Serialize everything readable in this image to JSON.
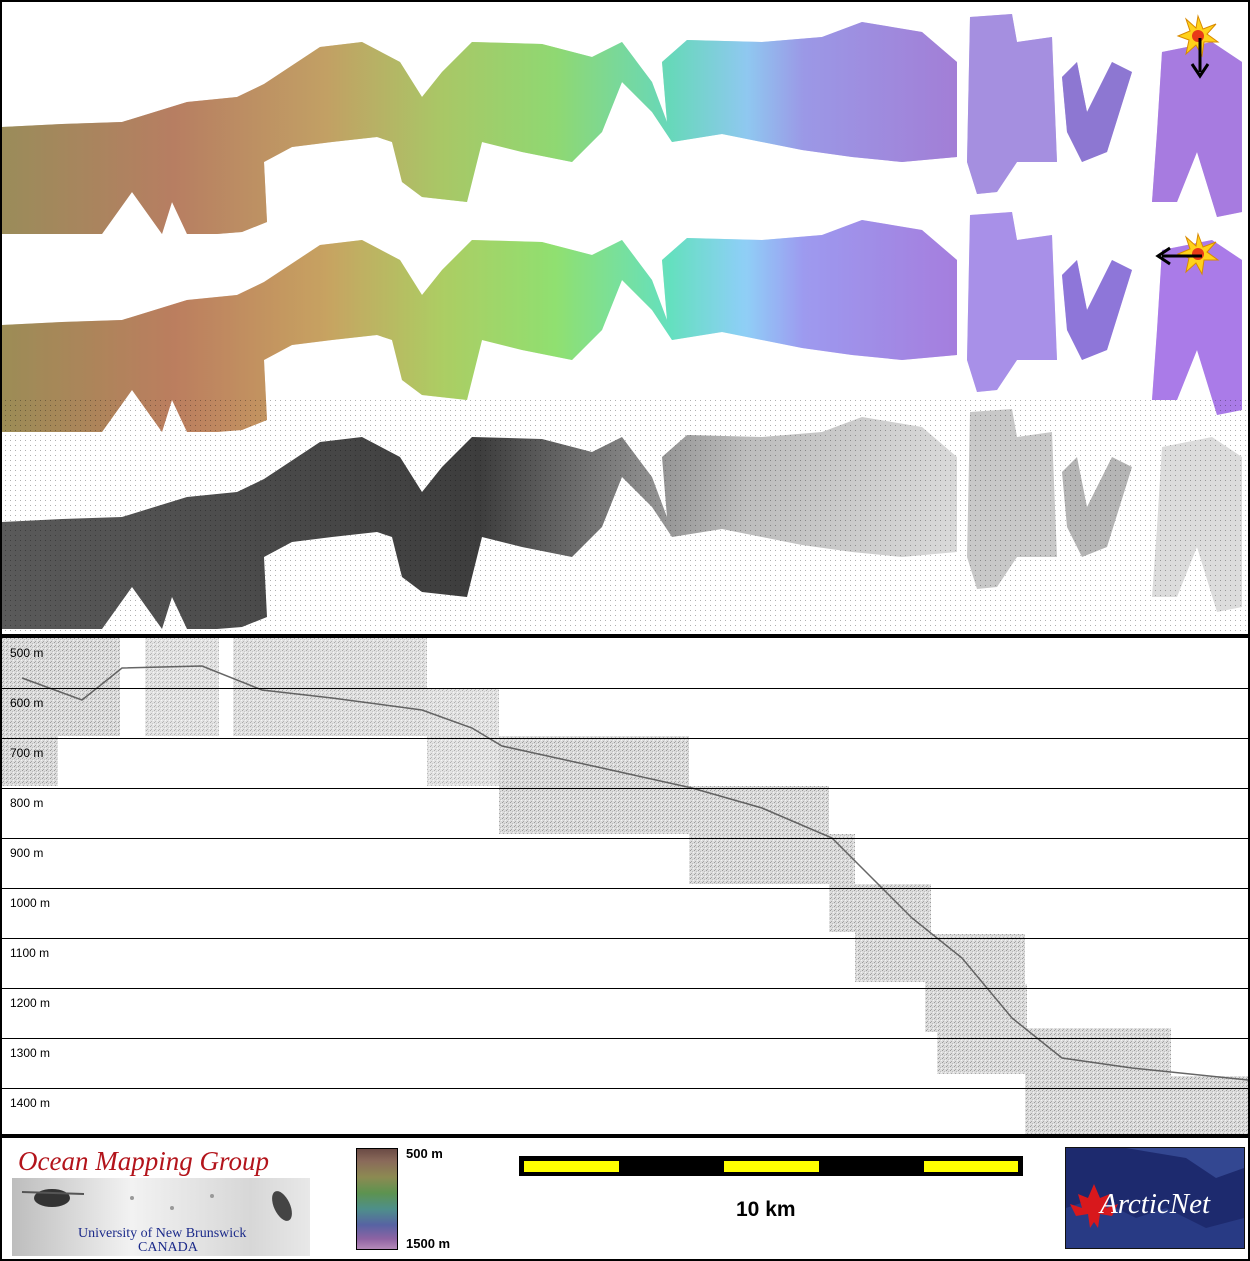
{
  "profile": {
    "depth_labels": [
      "500 m",
      "600 m",
      "700 m",
      "800 m",
      "900 m",
      "1000 m",
      "1100 m",
      "1200 m",
      "1300 m",
      "1400 m"
    ]
  },
  "footer": {
    "omg_title": "Ocean Mapping Group",
    "omg_university": "University of New Brunswick",
    "omg_country": "CANADA",
    "colorbar_min": "500 m",
    "colorbar_max": "1500 m",
    "scale_label": "10 km",
    "arcticnet_logo": "ArcticNet"
  },
  "colors": {
    "omg_red": "#b3141b",
    "omg_blue": "#1b2a8a",
    "scale_yellow": "#ffff00",
    "arcticnet_blue": "#1d2a6e"
  },
  "icons": [
    "sun-icon",
    "illumination-arrow-icon",
    "maple-leaf-icon"
  ]
}
